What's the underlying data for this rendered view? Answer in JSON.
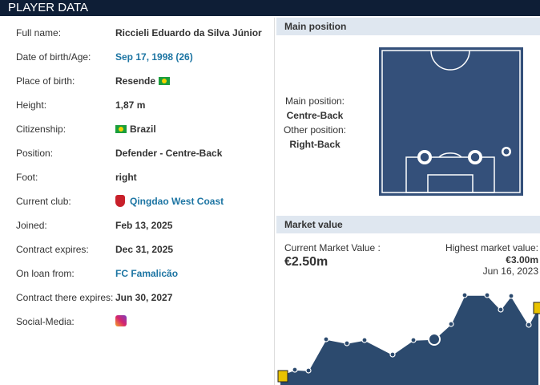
{
  "header": {
    "title": "PLAYER DATA"
  },
  "player_data": {
    "rows": [
      {
        "label": "Full name:",
        "value": "Riccieli Eduardo da Silva Júnior"
      },
      {
        "label": "Date of birth/Age:",
        "value": "Sep 17, 1998 (26)"
      },
      {
        "label": "Place of birth:",
        "value": "Resende"
      },
      {
        "label": "Height:",
        "value": "1,87 m"
      },
      {
        "label": "Citizenship:",
        "value": "Brazil"
      },
      {
        "label": "Position:",
        "value": "Defender - Centre-Back"
      },
      {
        "label": "Foot:",
        "value": "right"
      },
      {
        "label": "Current club:",
        "value": "Qingdao West Coast"
      },
      {
        "label": "Joined:",
        "value": "Feb 13, 2025"
      },
      {
        "label": "Contract expires:",
        "value": "Dec 31, 2025"
      },
      {
        "label": "On loan from:",
        "value": "FC Famalicão"
      },
      {
        "label": "Contract there expires:",
        "value": "Jun 30, 2027"
      },
      {
        "label": "Social-Media:"
      }
    ]
  },
  "main_position": {
    "title": "Main position",
    "main_label": "Main position:",
    "main": "Centre-Back",
    "other_label": "Other position:",
    "other": "Right-Back"
  },
  "market_value": {
    "title": "Market value",
    "current_label": "Current Market Value :",
    "current": "€2.50m",
    "highest_label": "Highest market value:",
    "highest": "€3.00m",
    "highest_date": "Jun 16, 2023"
  }
}
